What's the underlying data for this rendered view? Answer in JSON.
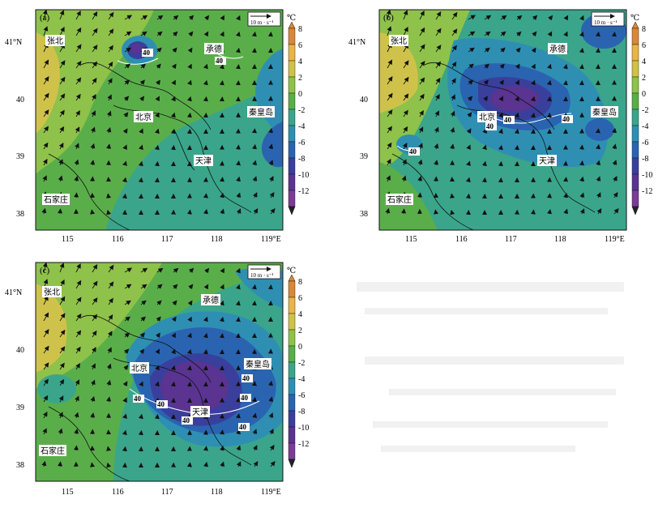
{
  "colorbar": {
    "unit": "℃",
    "ticks": [
      "8",
      "6",
      "4",
      "2",
      "0",
      "-2",
      "-4",
      "-6",
      "-8",
      "-10",
      "-12"
    ],
    "colors": [
      "#d8883a",
      "#e8b54a",
      "#cfc24a",
      "#8ec24a",
      "#5aae4a",
      "#3aa58a",
      "#2e8fb3",
      "#2a64b0",
      "#3a3f9c",
      "#5a3490",
      "#7a3c94"
    ]
  },
  "map": {
    "x_ticks": [
      "115",
      "116",
      "117",
      "118",
      "119°E"
    ],
    "y_ticks": [
      "41°N",
      "40",
      "39",
      "38"
    ],
    "ref_vector_label": "10 m · s⁻¹",
    "contour_label": "40",
    "cities": {
      "zhangbei": "张北",
      "chengde": "承德",
      "beijing": "北京",
      "qinhuangdao": "秦皇岛",
      "tianjin": "天津",
      "shijiazhuang": "石家庄"
    }
  },
  "panels": [
    {
      "id": "a",
      "label": "(a)"
    },
    {
      "id": "b",
      "label": "(b)"
    },
    {
      "id": "c",
      "label": "(c)"
    }
  ]
}
